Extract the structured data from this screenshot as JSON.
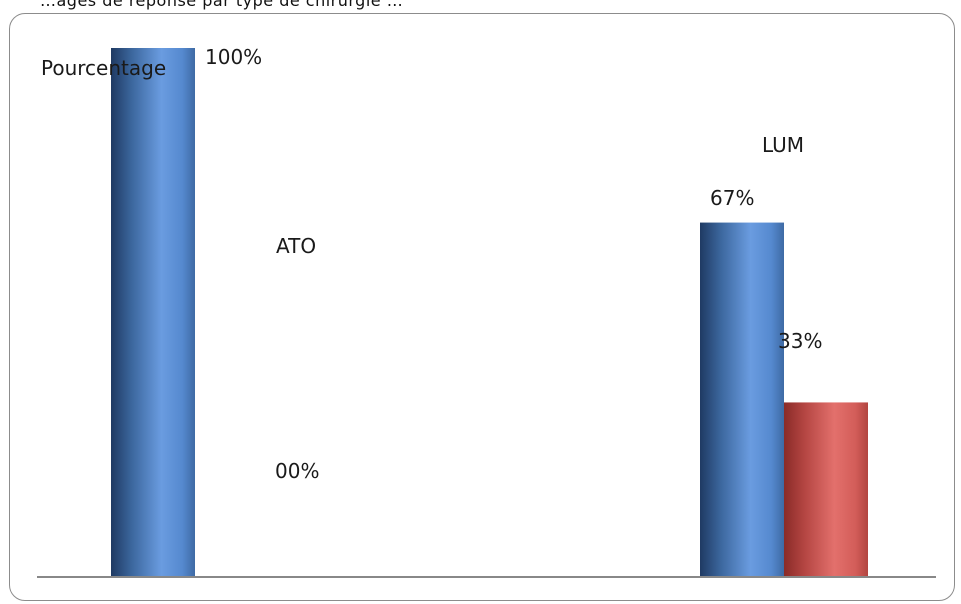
{
  "header_fragment": "…ages de réponse par type de chirurgie …",
  "chart_data": {
    "type": "bar",
    "ylabel": "Pourcentage",
    "ylim": [
      0,
      100
    ],
    "grid": false,
    "legend": "none",
    "categories": [
      "ATO",
      "LUM"
    ],
    "series": [
      {
        "color": "#4f81bd",
        "values": [
          100,
          67
        ]
      },
      {
        "color": "#c0504d",
        "values": [
          0,
          33
        ]
      }
    ],
    "data_labels": [
      [
        "100%",
        "67%"
      ],
      [
        "00%",
        "33%"
      ]
    ]
  }
}
